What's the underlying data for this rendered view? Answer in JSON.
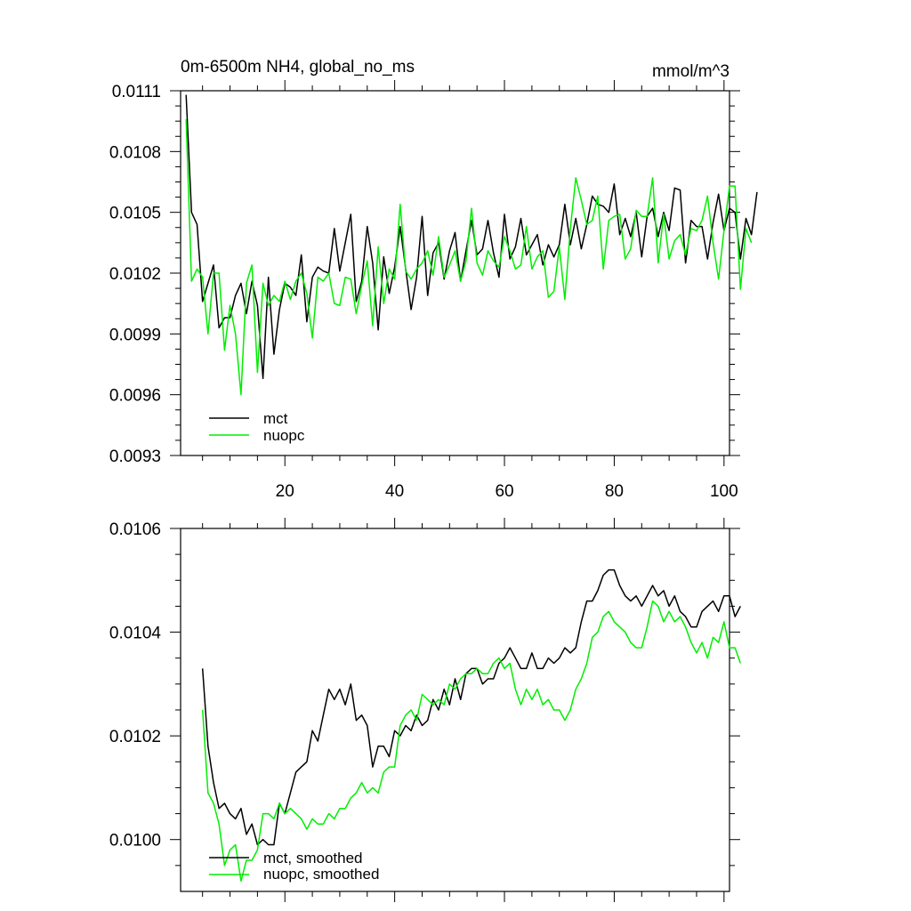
{
  "chart_data": [
    {
      "type": "line",
      "title": "0m-6500m NH4, global_no_ms",
      "units": "mmol/m^3",
      "xlim": [
        1,
        101
      ],
      "ylim": [
        0.0093,
        0.0111
      ],
      "x_ticks": [
        20,
        40,
        60,
        80,
        100
      ],
      "x_tick_labels": [
        "20",
        "40",
        "60",
        "80",
        "100"
      ],
      "y_ticks": [
        0.0093,
        0.0096,
        0.0099,
        0.0102,
        0.0105,
        0.0108,
        0.0111
      ],
      "y_tick_labels": [
        "0.0093",
        "0.0096",
        "0.0099",
        "0.0102",
        "0.0105",
        "0.0108",
        "0.0111"
      ],
      "legend_position": "bottom-left",
      "x_start": 2,
      "series": [
        {
          "name": "mct",
          "color": "#000000",
          "values": [
            0.01108,
            0.0105,
            0.01044,
            0.01006,
            0.01015,
            0.01024,
            0.00993,
            0.00998,
            0.00998,
            0.01009,
            0.01015,
            0.01,
            0.01016,
            0.01004,
            0.00968,
            0.01018,
            0.0098,
            0.01002,
            0.01015,
            0.01013,
            0.01009,
            0.01029,
            0.00996,
            0.01018,
            0.01023,
            0.01021,
            0.0102,
            0.01042,
            0.01021,
            0.01035,
            0.01049,
            0.01006,
            0.01016,
            0.01043,
            0.01025,
            0.00992,
            0.01028,
            0.0101,
            0.01023,
            0.01043,
            0.01022,
            0.01002,
            0.01018,
            0.01048,
            0.01009,
            0.0103,
            0.01035,
            0.01017,
            0.01031,
            0.0104,
            0.01016,
            0.01031,
            0.01046,
            0.01029,
            0.01032,
            0.01046,
            0.0103,
            0.01018,
            0.01049,
            0.01027,
            0.01033,
            0.01047,
            0.01029,
            0.01034,
            0.01039,
            0.01024,
            0.01034,
            0.01028,
            0.01034,
            0.01054,
            0.01034,
            0.01047,
            0.01032,
            0.01044,
            0.01058,
            0.01054,
            0.01053,
            0.0105,
            0.01064,
            0.01039,
            0.01047,
            0.01038,
            0.0105,
            0.01028,
            0.01048,
            0.01052,
            0.01038,
            0.0105,
            0.01041,
            0.01062,
            0.01061,
            0.01025,
            0.01046,
            0.01043,
            0.01043,
            0.01027,
            0.01045,
            0.01059,
            0.01041,
            0.01052,
            0.0105,
            0.01027,
            0.01047,
            0.01039,
            0.0106
          ]
        },
        {
          "name": "nuopc",
          "color": "#00ee00",
          "values": [
            0.01096,
            0.01016,
            0.01022,
            0.01018,
            0.0099,
            0.0102,
            0.0102,
            0.00982,
            0.01004,
            0.0099,
            0.0096,
            0.01015,
            0.01024,
            0.00971,
            0.01015,
            0.01004,
            0.01009,
            0.01006,
            0.01016,
            0.01007,
            0.01016,
            0.0102,
            0.0101,
            0.00988,
            0.01018,
            0.01016,
            0.0102,
            0.01005,
            0.01004,
            0.01018,
            0.01017,
            0.01,
            0.01014,
            0.01026,
            0.00994,
            0.01033,
            0.01005,
            0.01022,
            0.01017,
            0.01054,
            0.01021,
            0.01017,
            0.01022,
            0.01025,
            0.01031,
            0.01019,
            0.01038,
            0.01018,
            0.01024,
            0.01031,
            0.01016,
            0.01026,
            0.01052,
            0.01025,
            0.01019,
            0.01031,
            0.01026,
            0.01023,
            0.01038,
            0.01031,
            0.01022,
            0.01024,
            0.01043,
            0.01022,
            0.01028,
            0.01031,
            0.01008,
            0.01011,
            0.01033,
            0.01007,
            0.01042,
            0.01067,
            0.01056,
            0.01044,
            0.01046,
            0.01058,
            0.01022,
            0.01046,
            0.01048,
            0.01049,
            0.01027,
            0.01032,
            0.01051,
            0.01048,
            0.01048,
            0.01067,
            0.01025,
            0.01049,
            0.01027,
            0.01036,
            0.01039,
            0.01029,
            0.01042,
            0.01041,
            0.01046,
            0.01058,
            0.01035,
            0.01017,
            0.01041,
            0.01063,
            0.01063,
            0.01012,
            0.01042,
            0.01035
          ]
        }
      ]
    },
    {
      "type": "line",
      "xlim": [
        1,
        101
      ],
      "ylim": [
        0.0099,
        0.0106
      ],
      "x_ticks": [
        20,
        40,
        60,
        80,
        100
      ],
      "y_ticks": [
        0.01,
        0.0102,
        0.0104,
        0.0106
      ],
      "y_tick_labels": [
        "0.0100",
        "0.0102",
        "0.0104",
        "0.0106"
      ],
      "legend_position": "bottom-left",
      "x_start": 5,
      "series": [
        {
          "name": "mct, smoothed",
          "color": "#000000",
          "values": [
            0.01033,
            0.01018,
            0.01011,
            0.01006,
            0.01007,
            0.01005,
            0.01004,
            0.01006,
            0.01001,
            0.01003,
            0.00999,
            0.01,
            0.00999,
            0.00999,
            0.01007,
            0.01005,
            0.01009,
            0.01013,
            0.01014,
            0.01015,
            0.01021,
            0.01019,
            0.01024,
            0.01029,
            0.01027,
            0.01029,
            0.01026,
            0.0103,
            0.01023,
            0.01024,
            0.01022,
            0.01014,
            0.01018,
            0.01018,
            0.01016,
            0.01021,
            0.0102,
            0.01022,
            0.01021,
            0.01024,
            0.01022,
            0.01023,
            0.01027,
            0.01025,
            0.01029,
            0.01026,
            0.01031,
            0.01027,
            0.01032,
            0.01033,
            0.01033,
            0.0103,
            0.01031,
            0.01031,
            0.01034,
            0.01035,
            0.01037,
            0.01035,
            0.01033,
            0.01033,
            0.01036,
            0.01033,
            0.01033,
            0.01035,
            0.01034,
            0.01035,
            0.01037,
            0.01036,
            0.01037,
            0.01042,
            0.01046,
            0.01046,
            0.01048,
            0.01051,
            0.01052,
            0.01052,
            0.01049,
            0.01047,
            0.01046,
            0.01047,
            0.01045,
            0.01047,
            0.01049,
            0.01047,
            0.01048,
            0.01045,
            0.01047,
            0.01044,
            0.01043,
            0.01041,
            0.01041,
            0.01044,
            0.01045,
            0.01046,
            0.01044,
            0.01047,
            0.01047,
            0.01043,
            0.01045
          ]
        },
        {
          "name": "nuopc, smoothed",
          "color": "#00ee00",
          "values": [
            0.01025,
            0.01009,
            0.01007,
            0.01003,
            0.00995,
            0.00998,
            0.00999,
            0.00992,
            0.00996,
            0.00996,
            0.00998,
            0.01005,
            0.01005,
            0.01004,
            0.01007,
            0.01005,
            0.01006,
            0.01005,
            0.01004,
            0.01002,
            0.01004,
            0.01003,
            0.01003,
            0.01005,
            0.01004,
            0.01006,
            0.01006,
            0.01008,
            0.01009,
            0.01011,
            0.01009,
            0.0101,
            0.01009,
            0.01013,
            0.01014,
            0.01014,
            0.01022,
            0.01024,
            0.01025,
            0.01023,
            0.01028,
            0.01027,
            0.01026,
            0.01027,
            0.01026,
            0.0103,
            0.01029,
            0.01031,
            0.01032,
            0.01032,
            0.01033,
            0.01032,
            0.01032,
            0.01034,
            0.01035,
            0.01033,
            0.01034,
            0.01029,
            0.01026,
            0.01029,
            0.01027,
            0.01029,
            0.01026,
            0.01027,
            0.01025,
            0.01025,
            0.01023,
            0.01025,
            0.01029,
            0.01031,
            0.01034,
            0.01039,
            0.0104,
            0.01043,
            0.01044,
            0.01042,
            0.01041,
            0.0104,
            0.01038,
            0.01037,
            0.01037,
            0.01041,
            0.01046,
            0.01045,
            0.01042,
            0.01044,
            0.01042,
            0.01043,
            0.01041,
            0.01038,
            0.01036,
            0.01038,
            0.01035,
            0.01039,
            0.01038,
            0.01042,
            0.01037,
            0.01037,
            0.01034
          ]
        }
      ]
    }
  ]
}
